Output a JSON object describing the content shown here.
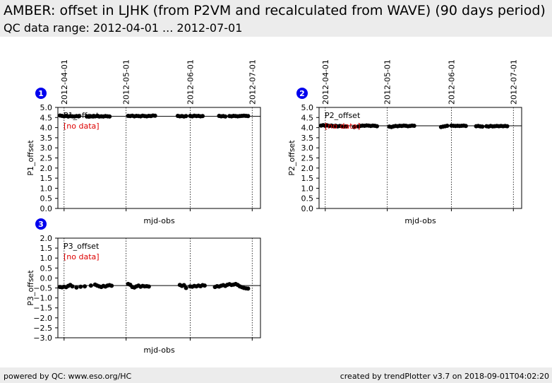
{
  "header": {
    "title": "AMBER: offset in LJHK (from P2VM and recalculated from WAVE) (90 days period)",
    "range_text": "QC data range: 2012-04-01 ... 2012-07-01"
  },
  "footer": {
    "left": "powered by QC: www.eso.org/HC",
    "right": "created by trendPlotter v3.7 on 2018-09-01T04:02:20"
  },
  "colors": {
    "badge": "#0000ee",
    "no_data": "#dd0000",
    "points": "#000000",
    "header_bg": "#ececec"
  },
  "chart_data": [
    {
      "type": "scatter",
      "badge": "1",
      "series_label": "P1_offset",
      "no_data_label": "[no data]",
      "xlabel": "mjd-obs",
      "ylabel": "P1_offset",
      "date_ticks": [
        "2012-04-01",
        "2012-05-01",
        "2012-06-01",
        "2012-07-01"
      ],
      "xlim": [
        "2012-03-29",
        "2012-07-05"
      ],
      "ylim": [
        0.0,
        5.0
      ],
      "yticks": [
        "0.0",
        "0.5",
        "1.0",
        "1.5",
        "2.0",
        "2.5",
        "3.0",
        "3.5",
        "4.0",
        "4.5",
        "5.0"
      ],
      "reference_line": 4.56,
      "points": [
        [
          "2012-03-30",
          4.6
        ],
        [
          "2012-03-31",
          4.58
        ],
        [
          "2012-04-01",
          4.56
        ],
        [
          "2012-04-02",
          4.58
        ],
        [
          "2012-04-03",
          4.55
        ],
        [
          "2012-04-04",
          4.57
        ],
        [
          "2012-04-05",
          4.56
        ],
        [
          "2012-04-06",
          4.55
        ],
        [
          "2012-04-07",
          4.57
        ],
        [
          "2012-04-08",
          4.56
        ],
        [
          "2012-04-12",
          4.55
        ],
        [
          "2012-04-13",
          4.54
        ],
        [
          "2012-04-14",
          4.56
        ],
        [
          "2012-04-15",
          4.55
        ],
        [
          "2012-04-16",
          4.56
        ],
        [
          "2012-04-17",
          4.57
        ],
        [
          "2012-04-18",
          4.55
        ],
        [
          "2012-04-19",
          4.56
        ],
        [
          "2012-04-20",
          4.55
        ],
        [
          "2012-04-21",
          4.57
        ],
        [
          "2012-04-22",
          4.56
        ],
        [
          "2012-04-23",
          4.55
        ],
        [
          "2012-05-02",
          4.58
        ],
        [
          "2012-05-03",
          4.57
        ],
        [
          "2012-05-04",
          4.59
        ],
        [
          "2012-05-05",
          4.56
        ],
        [
          "2012-05-06",
          4.58
        ],
        [
          "2012-05-07",
          4.57
        ],
        [
          "2012-05-08",
          4.56
        ],
        [
          "2012-05-09",
          4.59
        ],
        [
          "2012-05-10",
          4.57
        ],
        [
          "2012-05-11",
          4.56
        ],
        [
          "2012-05-12",
          4.58
        ],
        [
          "2012-05-13",
          4.57
        ],
        [
          "2012-05-14",
          4.6
        ],
        [
          "2012-05-15",
          4.59
        ],
        [
          "2012-05-26",
          4.58
        ],
        [
          "2012-05-27",
          4.56
        ],
        [
          "2012-05-28",
          4.57
        ],
        [
          "2012-05-29",
          4.55
        ],
        [
          "2012-05-30",
          4.57
        ],
        [
          "2012-06-01",
          4.58
        ],
        [
          "2012-06-02",
          4.56
        ],
        [
          "2012-06-03",
          4.59
        ],
        [
          "2012-06-04",
          4.57
        ],
        [
          "2012-06-05",
          4.58
        ],
        [
          "2012-06-06",
          4.56
        ],
        [
          "2012-06-07",
          4.57
        ],
        [
          "2012-06-15",
          4.58
        ],
        [
          "2012-06-16",
          4.56
        ],
        [
          "2012-06-17",
          4.57
        ],
        [
          "2012-06-18",
          4.55
        ],
        [
          "2012-06-20",
          4.57
        ],
        [
          "2012-06-21",
          4.56
        ],
        [
          "2012-06-22",
          4.58
        ],
        [
          "2012-06-23",
          4.57
        ],
        [
          "2012-06-24",
          4.56
        ],
        [
          "2012-06-25",
          4.57
        ],
        [
          "2012-06-26",
          4.58
        ],
        [
          "2012-06-27",
          4.59
        ],
        [
          "2012-06-28",
          4.58
        ],
        [
          "2012-06-29",
          4.57
        ]
      ]
    },
    {
      "type": "scatter",
      "badge": "2",
      "series_label": "P2_offset",
      "no_data_label": "[no data]",
      "xlabel": "mjd-obs",
      "ylabel": "P2_offset",
      "date_ticks": [
        "2012-04-01",
        "2012-05-01",
        "2012-06-01",
        "2012-07-01"
      ],
      "xlim": [
        "2012-03-29",
        "2012-07-05"
      ],
      "ylim": [
        0.0,
        5.0
      ],
      "yticks": [
        "0.0",
        "0.5",
        "1.0",
        "1.5",
        "2.0",
        "2.5",
        "3.0",
        "3.5",
        "4.0",
        "4.5",
        "5.0"
      ],
      "reference_line": 4.09,
      "points": [
        [
          "2012-03-30",
          4.1
        ],
        [
          "2012-03-31",
          4.12
        ],
        [
          "2012-04-01",
          4.09
        ],
        [
          "2012-04-02",
          4.11
        ],
        [
          "2012-04-03",
          4.08
        ],
        [
          "2012-04-04",
          4.1
        ],
        [
          "2012-04-05",
          4.07
        ],
        [
          "2012-04-06",
          4.09
        ],
        [
          "2012-04-07",
          4.06
        ],
        [
          "2012-04-08",
          4.08
        ],
        [
          "2012-04-09",
          4.07
        ],
        [
          "2012-04-10",
          4.05
        ],
        [
          "2012-04-11",
          4.06
        ],
        [
          "2012-04-15",
          4.03
        ],
        [
          "2012-04-17",
          4.06
        ],
        [
          "2012-04-18",
          4.08
        ],
        [
          "2012-04-19",
          4.1
        ],
        [
          "2012-04-20",
          4.09
        ],
        [
          "2012-04-21",
          4.11
        ],
        [
          "2012-04-22",
          4.1
        ],
        [
          "2012-04-23",
          4.08
        ],
        [
          "2012-04-24",
          4.1
        ],
        [
          "2012-04-25",
          4.09
        ],
        [
          "2012-04-26",
          4.07
        ],
        [
          "2012-05-02",
          4.05
        ],
        [
          "2012-05-03",
          4.03
        ],
        [
          "2012-05-04",
          4.06
        ],
        [
          "2012-05-05",
          4.08
        ],
        [
          "2012-05-06",
          4.07
        ],
        [
          "2012-05-07",
          4.09
        ],
        [
          "2012-05-08",
          4.08
        ],
        [
          "2012-05-09",
          4.1
        ],
        [
          "2012-05-10",
          4.09
        ],
        [
          "2012-05-11",
          4.07
        ],
        [
          "2012-05-12",
          4.08
        ],
        [
          "2012-05-13",
          4.1
        ],
        [
          "2012-05-14",
          4.09
        ],
        [
          "2012-05-27",
          4.03
        ],
        [
          "2012-05-28",
          4.05
        ],
        [
          "2012-05-29",
          4.07
        ],
        [
          "2012-05-30",
          4.09
        ],
        [
          "2012-06-01",
          4.1
        ],
        [
          "2012-06-02",
          4.09
        ],
        [
          "2012-06-03",
          4.08
        ],
        [
          "2012-06-04",
          4.09
        ],
        [
          "2012-06-05",
          4.08
        ],
        [
          "2012-06-06",
          4.09
        ],
        [
          "2012-06-07",
          4.1
        ],
        [
          "2012-06-08",
          4.08
        ],
        [
          "2012-06-13",
          4.07
        ],
        [
          "2012-06-14",
          4.08
        ],
        [
          "2012-06-15",
          4.06
        ],
        [
          "2012-06-16",
          4.05
        ],
        [
          "2012-06-18",
          4.07
        ],
        [
          "2012-06-19",
          4.05
        ],
        [
          "2012-06-20",
          4.08
        ],
        [
          "2012-06-21",
          4.06
        ],
        [
          "2012-06-22",
          4.07
        ],
        [
          "2012-06-23",
          4.08
        ],
        [
          "2012-06-24",
          4.07
        ],
        [
          "2012-06-25",
          4.08
        ],
        [
          "2012-06-26",
          4.07
        ],
        [
          "2012-06-27",
          4.08
        ],
        [
          "2012-06-28",
          4.07
        ]
      ]
    },
    {
      "type": "scatter",
      "badge": "3",
      "series_label": "P3_offset",
      "no_data_label": "[no data]",
      "xlabel": "mjd-obs",
      "ylabel": "P3_offset",
      "date_ticks": [
        "2012-04-01",
        "2012-05-01",
        "2012-06-01",
        "2012-07-01"
      ],
      "xlim": [
        "2012-03-29",
        "2012-07-05"
      ],
      "ylim": [
        -3.0,
        2.0
      ],
      "yticks": [
        "−3.0",
        "−2.5",
        "−2.0",
        "−1.5",
        "−1.0",
        "−0.5",
        "0.0",
        "0.5",
        "1.0",
        "1.5",
        "2.0"
      ],
      "reference_line": -0.38,
      "points": [
        [
          "2012-03-30",
          -0.45
        ],
        [
          "2012-03-31",
          -0.47
        ],
        [
          "2012-04-01",
          -0.44
        ],
        [
          "2012-04-02",
          -0.46
        ],
        [
          "2012-04-03",
          -0.4
        ],
        [
          "2012-04-04",
          -0.35
        ],
        [
          "2012-04-05",
          -0.42
        ],
        [
          "2012-04-07",
          -0.48
        ],
        [
          "2012-04-09",
          -0.44
        ],
        [
          "2012-04-11",
          -0.42
        ],
        [
          "2012-04-14",
          -0.38
        ],
        [
          "2012-04-16",
          -0.33
        ],
        [
          "2012-04-17",
          -0.38
        ],
        [
          "2012-04-18",
          -0.42
        ],
        [
          "2012-04-19",
          -0.45
        ],
        [
          "2012-04-20",
          -0.4
        ],
        [
          "2012-04-21",
          -0.43
        ],
        [
          "2012-04-22",
          -0.38
        ],
        [
          "2012-04-23",
          -0.36
        ],
        [
          "2012-04-24",
          -0.39
        ],
        [
          "2012-05-02",
          -0.3
        ],
        [
          "2012-05-03",
          -0.34
        ],
        [
          "2012-05-04",
          -0.45
        ],
        [
          "2012-05-05",
          -0.48
        ],
        [
          "2012-05-06",
          -0.42
        ],
        [
          "2012-05-07",
          -0.38
        ],
        [
          "2012-05-08",
          -0.44
        ],
        [
          "2012-05-09",
          -0.4
        ],
        [
          "2012-05-10",
          -0.42
        ],
        [
          "2012-05-11",
          -0.41
        ],
        [
          "2012-05-12",
          -0.43
        ],
        [
          "2012-05-27",
          -0.35
        ],
        [
          "2012-05-28",
          -0.4
        ],
        [
          "2012-05-29",
          -0.36
        ],
        [
          "2012-05-30",
          -0.5
        ],
        [
          "2012-06-01",
          -0.42
        ],
        [
          "2012-06-02",
          -0.44
        ],
        [
          "2012-06-03",
          -0.4
        ],
        [
          "2012-06-04",
          -0.42
        ],
        [
          "2012-06-05",
          -0.38
        ],
        [
          "2012-06-06",
          -0.41
        ],
        [
          "2012-06-07",
          -0.36
        ],
        [
          "2012-06-08",
          -0.38
        ],
        [
          "2012-06-13",
          -0.45
        ],
        [
          "2012-06-14",
          -0.41
        ],
        [
          "2012-06-15",
          -0.43
        ],
        [
          "2012-06-16",
          -0.39
        ],
        [
          "2012-06-17",
          -0.36
        ],
        [
          "2012-06-18",
          -0.4
        ],
        [
          "2012-06-19",
          -0.34
        ],
        [
          "2012-06-20",
          -0.31
        ],
        [
          "2012-06-21",
          -0.35
        ],
        [
          "2012-06-22",
          -0.33
        ],
        [
          "2012-06-23",
          -0.3
        ],
        [
          "2012-06-24",
          -0.35
        ],
        [
          "2012-06-25",
          -0.42
        ],
        [
          "2012-06-26",
          -0.46
        ],
        [
          "2012-06-27",
          -0.5
        ],
        [
          "2012-06-28",
          -0.52
        ],
        [
          "2012-06-29",
          -0.53
        ]
      ]
    }
  ]
}
